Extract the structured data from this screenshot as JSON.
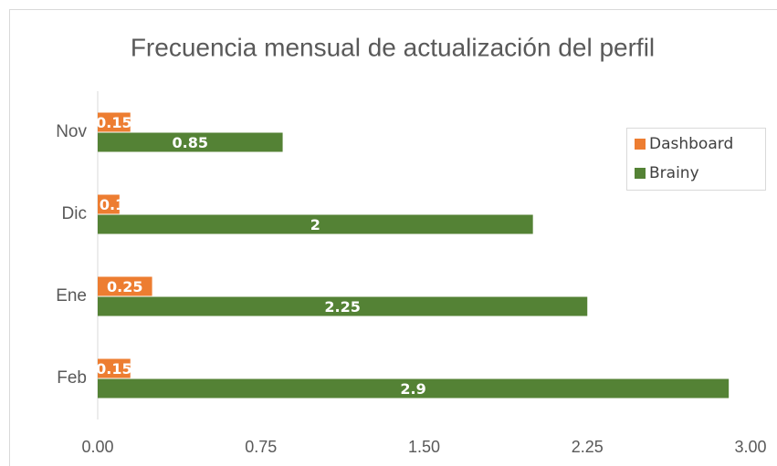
{
  "chart_data": {
    "type": "hbar",
    "title": "Frecuencia mensual de actualización del perfil",
    "categories": [
      "Nov",
      "Dic",
      "Ene",
      "Feb"
    ],
    "series": [
      {
        "name": "Dashboard",
        "color": "#ed7d31",
        "values": [
          0.15,
          0.1,
          0.25,
          0.15
        ]
      },
      {
        "name": "Brainy",
        "color": "#548235",
        "values": [
          0.85,
          2,
          2.25,
          2.9
        ]
      }
    ],
    "xlim": [
      0,
      3
    ],
    "xticks": [
      {
        "value": 0,
        "label": "0.00"
      },
      {
        "value": 0.75,
        "label": "0.75"
      },
      {
        "value": 1.5,
        "label": "1.50"
      },
      {
        "value": 2.25,
        "label": "2.25"
      },
      {
        "value": 3,
        "label": "3.00"
      }
    ],
    "legend": "right",
    "data_labels": true
  }
}
